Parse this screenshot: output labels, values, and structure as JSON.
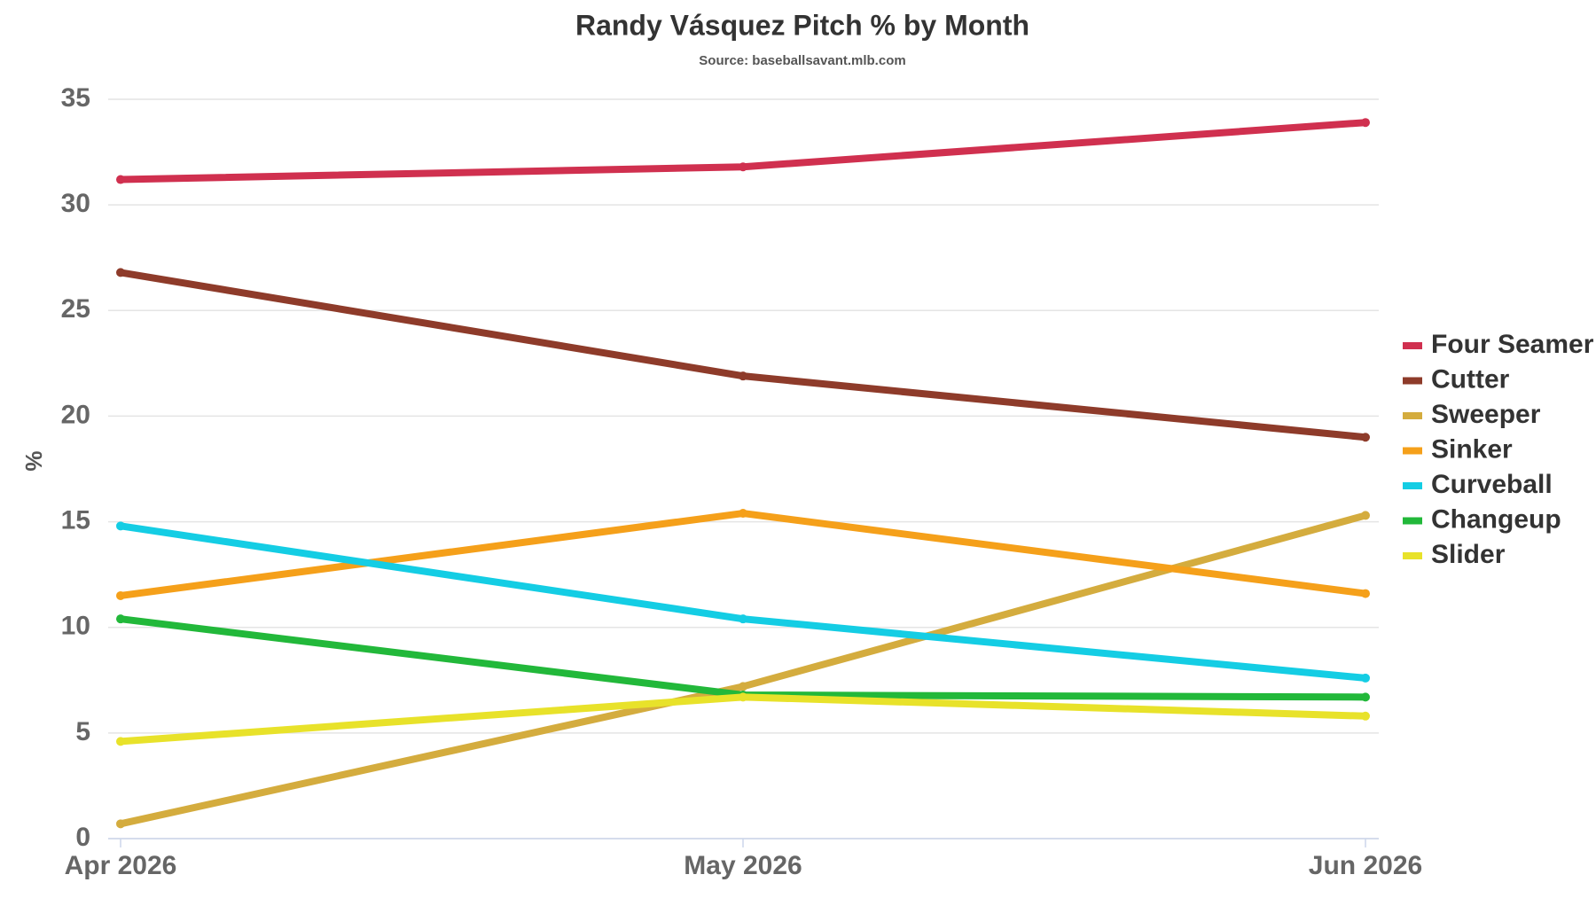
{
  "chart_data": {
    "type": "line",
    "title": "Randy Vásquez Pitch % by Month",
    "subtitle": "Source: baseballsavant.mlb.com",
    "y_label": "%",
    "categories": [
      "Apr 2026",
      "May 2026",
      "Jun 2026"
    ],
    "series": [
      {
        "name": "Four Seamer",
        "color": "#d0304f",
        "values": [
          31.2,
          31.8,
          33.9
        ]
      },
      {
        "name": "Cutter",
        "color": "#8e3b2a",
        "values": [
          26.8,
          21.9,
          19.0
        ]
      },
      {
        "name": "Sweeper",
        "color": "#d4ac3e",
        "values": [
          0.7,
          7.2,
          15.3
        ]
      },
      {
        "name": "Sinker",
        "color": "#f5a01a",
        "values": [
          11.5,
          15.4,
          11.6
        ]
      },
      {
        "name": "Curveball",
        "color": "#14cde4",
        "values": [
          14.8,
          10.4,
          7.6
        ]
      },
      {
        "name": "Changeup",
        "color": "#22b83a",
        "values": [
          10.4,
          6.8,
          6.7
        ]
      },
      {
        "name": "Slider",
        "color": "#e8e22a",
        "values": [
          4.6,
          6.7,
          5.8
        ]
      }
    ],
    "ylim": [
      0,
      35
    ],
    "yticks": [
      0,
      5,
      10,
      15,
      20,
      25,
      30,
      35
    ],
    "grid": true,
    "legend": "right"
  }
}
